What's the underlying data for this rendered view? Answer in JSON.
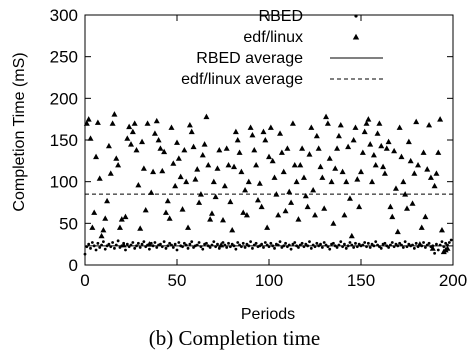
{
  "caption": "(b) Completion time",
  "chart_data": {
    "type": "scatter",
    "xlabel": "Periods",
    "ylabel": "Completion Time (mS)",
    "xlim": [
      0,
      200
    ],
    "ylim": [
      0,
      300
    ],
    "xticks": [
      0,
      50,
      100,
      150,
      200
    ],
    "yticks": [
      0,
      50,
      100,
      150,
      200,
      250,
      300
    ],
    "legend_position": "top-right",
    "grid": false,
    "series": [
      {
        "name": "RBED",
        "marker": "dot",
        "color": "#000000",
        "x": [
          0,
          1,
          2,
          3,
          4,
          5,
          6,
          7,
          8,
          9,
          10,
          11,
          12,
          13,
          14,
          15,
          16,
          17,
          18,
          19,
          20,
          21,
          22,
          23,
          24,
          25,
          26,
          27,
          28,
          29,
          30,
          31,
          32,
          33,
          34,
          35,
          36,
          37,
          38,
          39,
          40,
          41,
          42,
          43,
          44,
          45,
          46,
          47,
          48,
          49,
          50,
          51,
          52,
          53,
          54,
          55,
          56,
          57,
          58,
          59,
          60,
          61,
          62,
          63,
          64,
          65,
          66,
          67,
          68,
          69,
          70,
          71,
          72,
          73,
          74,
          75,
          76,
          77,
          78,
          79,
          80,
          81,
          82,
          83,
          84,
          85,
          86,
          87,
          88,
          89,
          90,
          91,
          92,
          93,
          94,
          95,
          96,
          97,
          98,
          99,
          100,
          101,
          102,
          103,
          104,
          105,
          106,
          107,
          108,
          109,
          110,
          111,
          112,
          113,
          114,
          115,
          116,
          117,
          118,
          119,
          120,
          121,
          122,
          123,
          124,
          125,
          126,
          127,
          128,
          129,
          130,
          131,
          132,
          133,
          134,
          135,
          136,
          137,
          138,
          139,
          140,
          141,
          142,
          143,
          144,
          145,
          146,
          147,
          148,
          149,
          150,
          151,
          152,
          153,
          154,
          155,
          156,
          157,
          158,
          159,
          160,
          161,
          162,
          163,
          164,
          165,
          166,
          167,
          168,
          169,
          170,
          171,
          172,
          173,
          174,
          175,
          176,
          177,
          178,
          179,
          180,
          181,
          182,
          183,
          184,
          185,
          186,
          187,
          188,
          189,
          190,
          191,
          192,
          193,
          194,
          195,
          196,
          197,
          198,
          199
        ],
        "y": [
          13,
          22,
          25,
          20,
          27,
          23,
          18,
          26,
          21,
          24,
          28,
          19,
          23,
          25,
          22,
          27,
          20,
          24,
          29,
          21,
          23,
          26,
          18,
          25,
          22,
          24,
          27,
          20,
          23,
          26,
          21,
          25,
          28,
          22,
          24,
          19,
          26,
          23,
          27,
          21,
          24,
          25,
          22,
          28,
          20,
          23,
          26,
          24,
          21,
          25,
          18,
          27,
          23,
          22,
          26,
          24,
          20,
          25,
          28,
          21,
          23,
          24,
          27,
          22,
          19,
          25,
          26,
          23,
          21,
          24,
          28,
          22,
          25,
          20,
          23,
          27,
          24,
          21,
          26,
          22,
          25,
          23,
          19,
          27,
          24,
          22,
          26,
          21,
          25,
          23,
          28,
          20,
          24,
          26,
          22,
          23,
          25,
          21,
          27,
          24,
          22,
          26,
          23,
          20,
          25,
          24,
          28,
          21,
          23,
          26,
          22,
          24,
          19,
          25,
          27,
          23,
          21,
          24,
          26,
          22,
          25,
          23,
          28,
          20,
          24,
          22,
          26,
          23,
          25,
          21,
          27,
          24,
          22,
          19,
          25,
          26,
          23,
          21,
          24,
          28,
          22,
          25,
          20,
          23,
          27,
          24,
          21,
          26,
          22,
          25,
          23,
          24,
          27,
          22,
          26,
          21,
          25,
          23,
          28,
          24,
          22,
          20,
          25,
          26,
          23,
          21,
          24,
          27,
          22,
          25,
          23,
          26,
          24,
          21,
          28,
          22,
          25,
          23,
          24,
          20,
          26,
          22,
          25,
          23,
          27,
          21,
          24,
          26,
          22,
          23,
          14,
          25,
          18,
          24,
          28,
          22,
          26,
          24,
          27,
          30
        ]
      },
      {
        "name": "edf/linux",
        "marker": "triangle",
        "color": "#000000",
        "x": [
          1,
          2,
          3,
          4,
          5,
          6,
          7,
          8,
          9,
          10,
          11,
          12,
          13,
          14,
          15,
          16,
          17,
          18,
          19,
          20,
          21,
          22,
          23,
          24,
          25,
          26,
          27,
          28,
          29,
          30,
          31,
          32,
          33,
          34,
          35,
          36,
          37,
          38,
          39,
          40,
          41,
          42,
          43,
          44,
          45,
          46,
          47,
          48,
          49,
          50,
          51,
          52,
          53,
          54,
          55,
          56,
          57,
          58,
          59,
          60,
          61,
          62,
          63,
          64,
          65,
          66,
          67,
          68,
          69,
          70,
          71,
          72,
          73,
          74,
          75,
          76,
          77,
          78,
          79,
          80,
          81,
          82,
          83,
          84,
          85,
          86,
          87,
          88,
          89,
          90,
          91,
          92,
          93,
          94,
          95,
          96,
          97,
          98,
          99,
          100,
          101,
          102,
          103,
          104,
          105,
          106,
          107,
          108,
          109,
          110,
          111,
          112,
          113,
          114,
          115,
          116,
          117,
          118,
          119,
          120,
          121,
          122,
          123,
          124,
          125,
          126,
          127,
          128,
          129,
          130,
          131,
          132,
          133,
          134,
          135,
          136,
          137,
          138,
          139,
          140,
          141,
          142,
          143,
          144,
          145,
          146,
          147,
          148,
          149,
          150,
          151,
          152,
          153,
          154,
          155,
          156,
          157,
          158,
          159,
          160,
          161,
          162,
          163,
          164,
          165,
          166,
          167,
          168,
          169,
          170,
          171,
          172,
          173,
          174,
          175,
          176,
          177,
          178,
          179,
          180,
          181,
          182,
          183,
          184,
          185,
          186,
          187,
          188,
          189,
          190,
          191,
          192,
          193,
          194,
          195,
          196,
          197
        ],
        "y": [
          170,
          175,
          152,
          45,
          63,
          130,
          171,
          104,
          35,
          42,
          56,
          77,
          143,
          110,
          170,
          181,
          128,
          120,
          45,
          55,
          24,
          58,
          152,
          166,
          145,
          160,
          170,
          138,
          96,
          44,
          148,
          116,
          66,
          170,
          25,
          87,
          112,
          158,
          173,
          150,
          140,
          113,
          136,
          63,
          77,
          56,
          165,
          122,
          95,
          147,
          128,
          106,
          67,
          138,
          100,
          45,
          168,
          160,
          142,
          103,
          115,
          75,
          85,
          132,
          145,
          178,
          120,
          55,
          62,
          100,
          82,
          116,
          138,
          24,
          54,
          95,
          140,
          120,
          76,
          42,
          118,
          160,
          150,
          135,
          112,
          63,
          90,
          60,
          100,
          165,
          156,
          138,
          120,
          78,
          98,
          70,
          160,
          150,
          45,
          130,
          165,
          125,
          105,
          85,
          60,
          158,
          135,
          112,
          65,
          140,
          88,
          75,
          170,
          120,
          100,
          55,
          120,
          140,
          105,
          83,
          70,
          133,
          165,
          90,
          60,
          155,
          140,
          118,
          105,
          68,
          178,
          170,
          128,
          100,
          50,
          116,
          140,
          155,
          168,
          112,
          60,
          100,
          142,
          80,
          35,
          150,
          165,
          103,
          70,
          112,
          135,
          160,
          170,
          175,
          145,
          100,
          132,
          120,
          158,
          170,
          143,
          118,
          110,
          140,
          148,
          70,
          58,
          137,
          92,
          40,
          165,
          130,
          100,
          85,
          68,
          148,
          125,
          74,
          110,
          172,
          120,
          25,
          45,
          135,
          58,
          115,
          168,
          105,
          20,
          95,
          110,
          135,
          175,
          42,
          16,
          18,
          20
        ]
      }
    ],
    "lines": [
      {
        "name": "RBED average",
        "style": "solid",
        "y": 23
      },
      {
        "name": "edf/linux average",
        "style": "dashed",
        "y": 85
      }
    ]
  }
}
